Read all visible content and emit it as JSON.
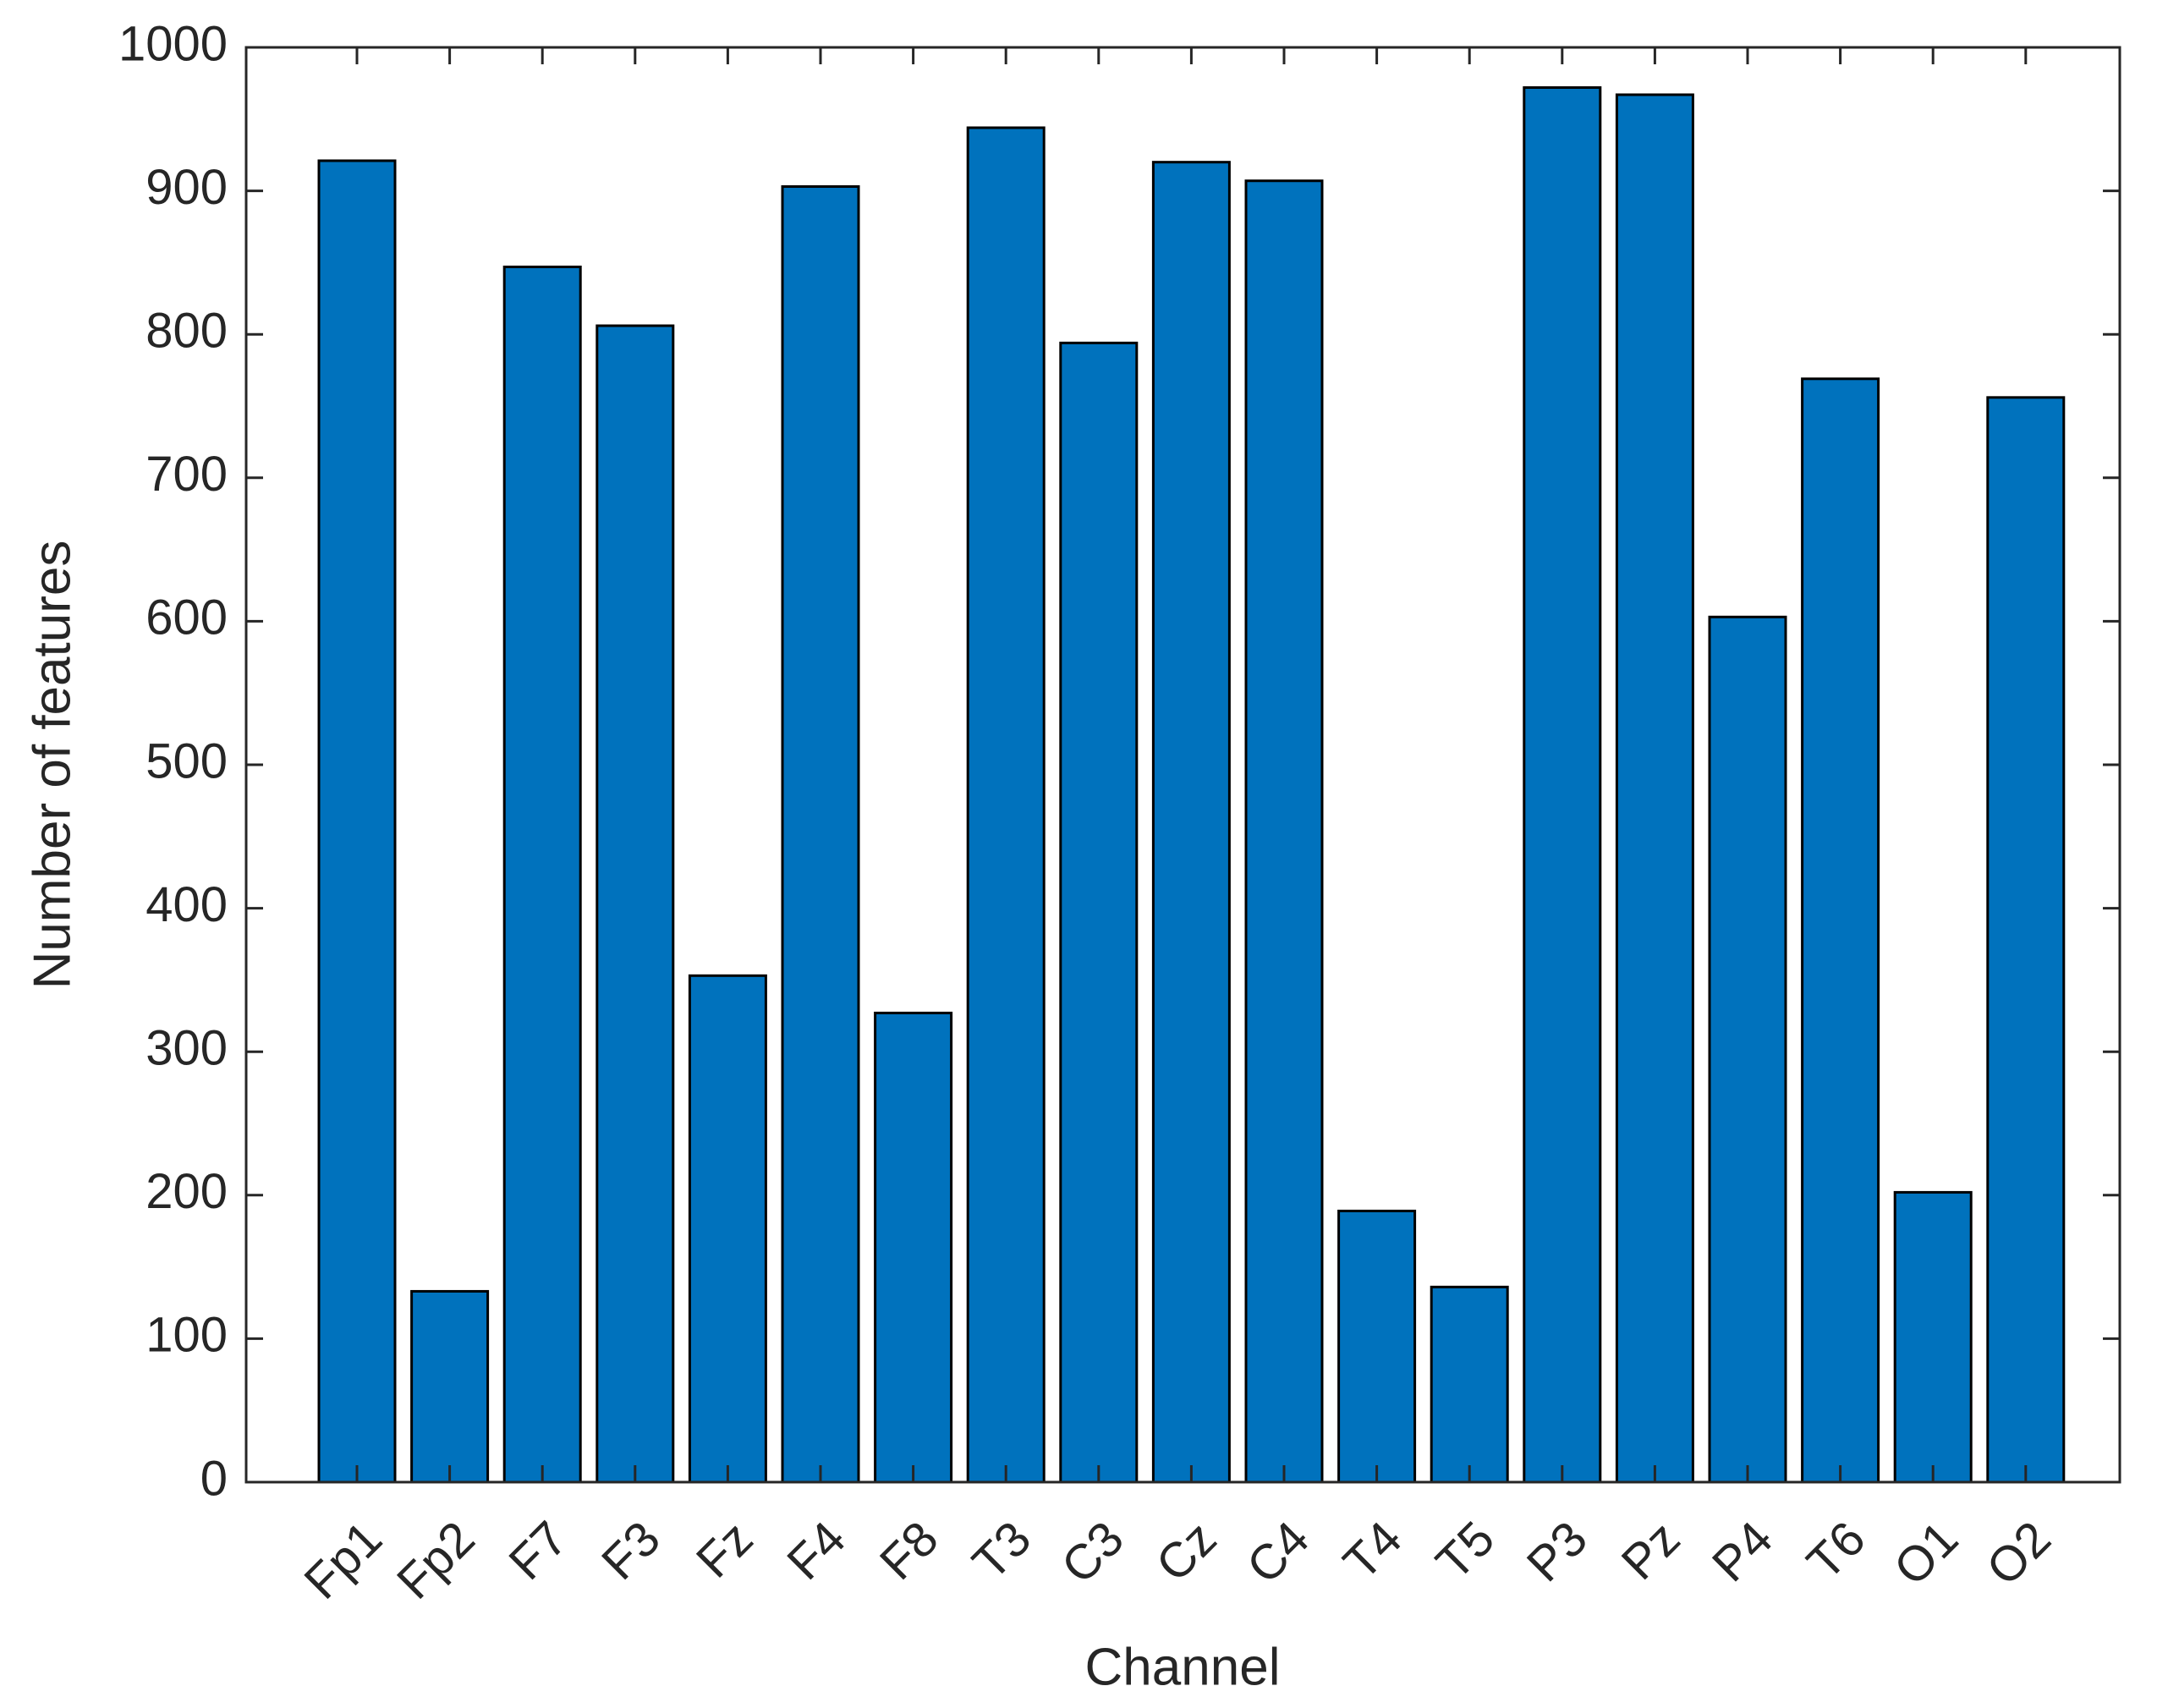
{
  "chart_data": {
    "type": "bar",
    "xlabel": "Channel",
    "ylabel": "Number of features",
    "categories": [
      "Fp1",
      "Fp2",
      "F7",
      "F3",
      "Fz",
      "F4",
      "F8",
      "T3",
      "C3",
      "Cz",
      "C4",
      "T4",
      "T5",
      "P3",
      "Pz",
      "P4",
      "T6",
      "O1",
      "O2"
    ],
    "values": [
      921,
      133,
      847,
      806,
      353,
      903,
      327,
      944,
      794,
      920,
      907,
      189,
      136,
      972,
      967,
      603,
      769,
      202,
      756
    ],
    "color": "#0072bd",
    "ylim": [
      0,
      1000
    ],
    "yticks": [
      0,
      100,
      200,
      300,
      400,
      500,
      600,
      700,
      800,
      900,
      1000
    ],
    "grid": false
  }
}
